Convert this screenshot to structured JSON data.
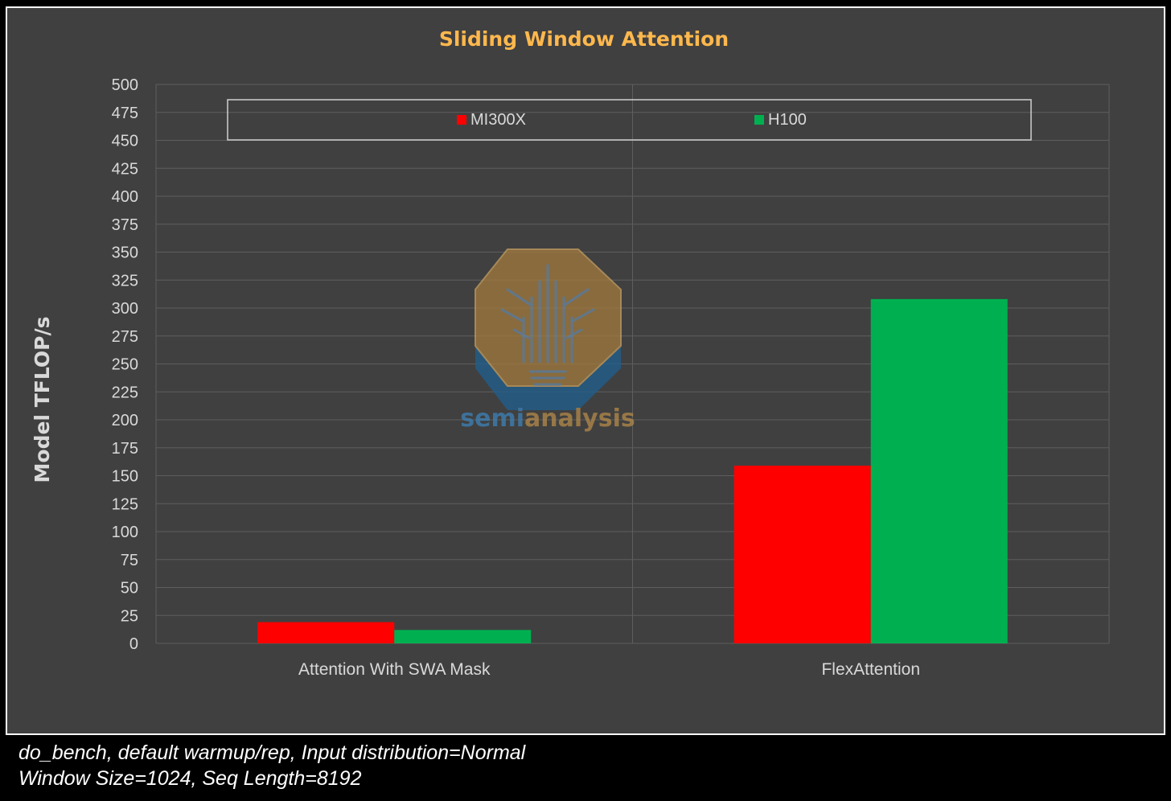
{
  "chart_data": {
    "type": "bar",
    "title": "Sliding Window Attention",
    "xlabel": "",
    "ylabel": "Model TFLOP/s",
    "categories": [
      "Attention With SWA Mask",
      "FlexAttention"
    ],
    "series": [
      {
        "name": "MI300X",
        "color": "#ff0000",
        "values": [
          19,
          159
        ]
      },
      {
        "name": "H100",
        "color": "#00b050",
        "values": [
          12,
          308
        ]
      }
    ],
    "ylim": [
      0,
      500
    ],
    "yticks": [
      0,
      25,
      50,
      75,
      100,
      125,
      150,
      175,
      200,
      225,
      250,
      275,
      300,
      325,
      350,
      375,
      400,
      425,
      450,
      475,
      500
    ],
    "grid": true,
    "legend_position": "top",
    "title_color": "#ffb84d"
  },
  "watermark": {
    "text_part1": "semi",
    "text_part2": "analysis"
  },
  "caption": {
    "line1": "do_bench, default warmup/rep, Input distribution=Normal",
    "line2": "Window Size=1024, Seq Length=8192"
  }
}
